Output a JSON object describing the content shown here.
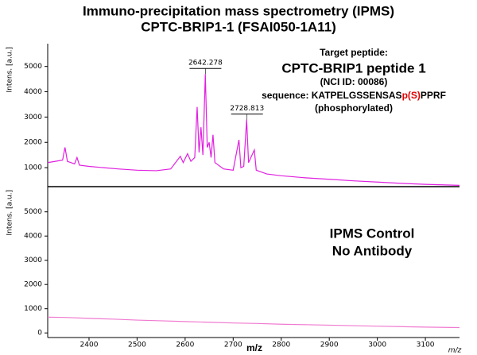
{
  "chart_data": [
    {
      "type": "line",
      "title": "Immuno-precipitation mass spectrometry (IPMS)",
      "subtitle": "CPTC-BRIP1-1 (FSAI050-1A11)",
      "y_label": "Intens. [a.u.]",
      "xlim": [
        2314,
        3171
      ],
      "ylim": [
        250,
        5900
      ],
      "yticks": [
        1000,
        2000,
        3000,
        4000,
        5000
      ],
      "x": [
        2314,
        2330,
        2345,
        2350,
        2355,
        2370,
        2375,
        2380,
        2400,
        2430,
        2460,
        2500,
        2540,
        2570,
        2590,
        2596,
        2605,
        2612,
        2620,
        2625,
        2629,
        2633,
        2637,
        2642,
        2646,
        2650,
        2654,
        2658,
        2662,
        2680,
        2700,
        2712,
        2716,
        2722,
        2728,
        2732,
        2744,
        2748,
        2770,
        2800,
        2850,
        2900,
        2950,
        3000,
        3050,
        3100,
        3171
      ],
      "series": [
        {
          "color": "#e020e0",
          "values": [
            1200,
            1250,
            1300,
            1800,
            1250,
            1150,
            1400,
            1100,
            1050,
            1000,
            950,
            900,
            880,
            950,
            1450,
            1200,
            1550,
            1250,
            1400,
            3400,
            1600,
            2600,
            1500,
            4700,
            1800,
            2000,
            1400,
            2300,
            1200,
            950,
            900,
            2100,
            1000,
            1050,
            2900,
            1200,
            1700,
            900,
            750,
            680,
            600,
            540,
            480,
            430,
            380,
            340,
            300
          ]
        }
      ],
      "peak_labels": [
        2642.278,
        2728.813
      ],
      "annotation": {
        "lines": [
          "Target peptide:",
          "CPTC-BRIP1 peptide 1",
          "(NCI ID: 00086)"
        ],
        "sequence": [
          "sequence: KATPELGSSENSAS",
          "p(S)",
          "PPRF"
        ],
        "highlight_color": "#e00000",
        "note": "(phosphorylated)"
      }
    },
    {
      "type": "line",
      "y_label": "Intens. [a.u.]",
      "x_label": "m/z",
      "x_unit": "m/z",
      "xlim": [
        2314,
        3171
      ],
      "ylim": [
        -190,
        6040
      ],
      "yticks": [
        0,
        1000,
        2000,
        3000,
        4000,
        5000
      ],
      "xticks": [
        2400,
        2500,
        2600,
        2700,
        2800,
        2900,
        3000,
        3100
      ],
      "x": [
        2314,
        2350,
        2400,
        2450,
        2500,
        2550,
        2600,
        2650,
        2700,
        2750,
        2800,
        2850,
        2900,
        2950,
        3000,
        3050,
        3100,
        3171
      ],
      "series": [
        {
          "color": "#f07ad0",
          "values": [
            650,
            640,
            600,
            570,
            530,
            500,
            470,
            440,
            410,
            390,
            360,
            340,
            320,
            300,
            280,
            260,
            240,
            220
          ]
        }
      ],
      "annotation": {
        "lines": [
          "IPMS Control",
          "No Antibody"
        ]
      }
    }
  ]
}
